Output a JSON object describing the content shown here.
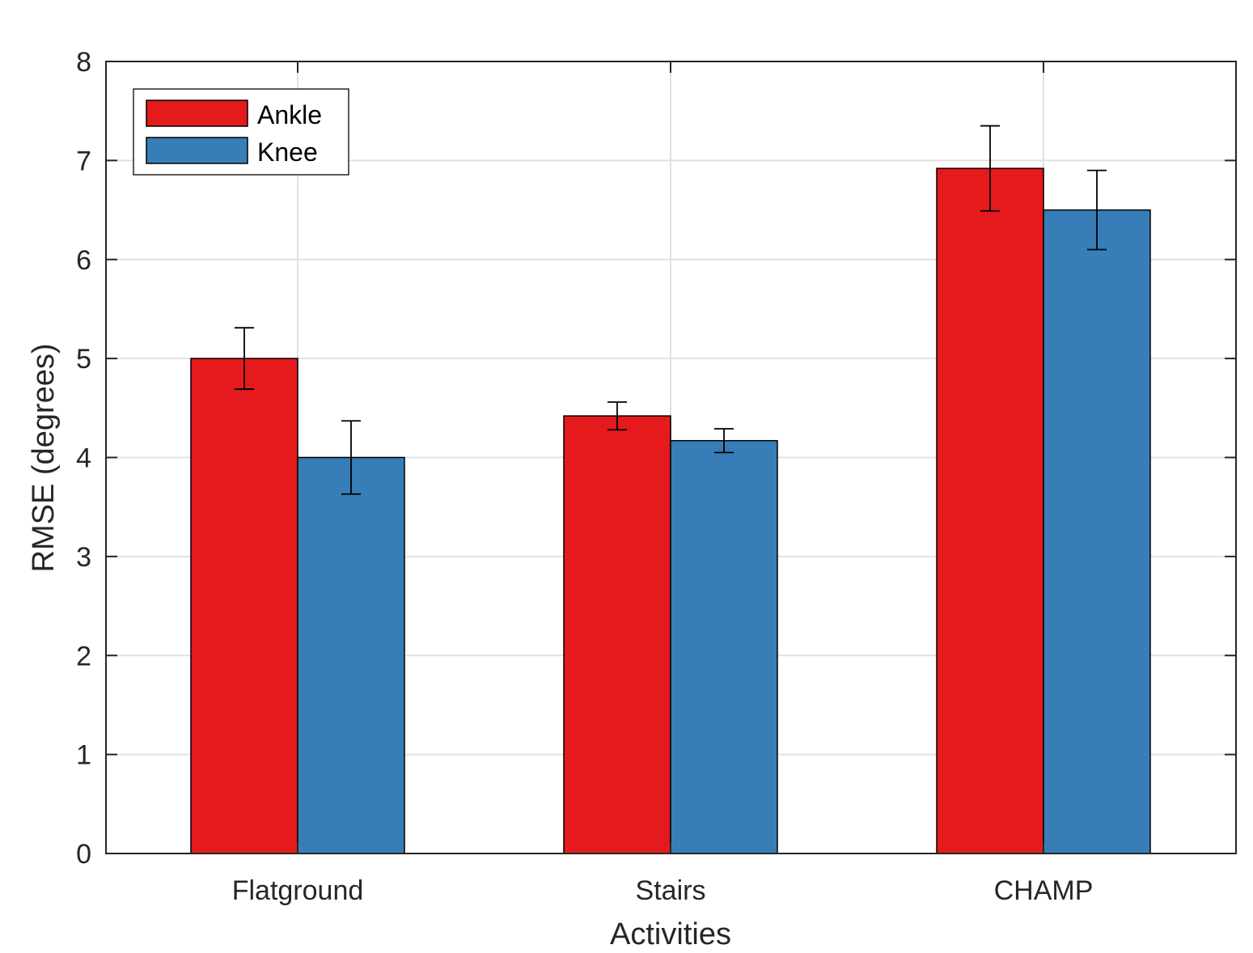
{
  "chart_data": {
    "type": "bar",
    "categories": [
      "Flatground",
      "Stairs",
      "CHAMP"
    ],
    "series": [
      {
        "name": "Ankle",
        "values": [
          5.0,
          4.42,
          6.92
        ],
        "error": [
          0.31,
          0.14,
          0.43
        ],
        "color": "#E41A1C"
      },
      {
        "name": "Knee",
        "values": [
          4.0,
          4.17,
          6.5
        ],
        "error": [
          0.37,
          0.12,
          0.4
        ],
        "color": "#377EB8"
      }
    ],
    "xlabel": "Activities",
    "ylabel": "RMSE (degrees)",
    "ylim": [
      0,
      8
    ],
    "yticks": [
      "0",
      "1",
      "2",
      "3",
      "4",
      "5",
      "6",
      "7",
      "8"
    ],
    "grid": true,
    "legend_position": "top-left"
  }
}
